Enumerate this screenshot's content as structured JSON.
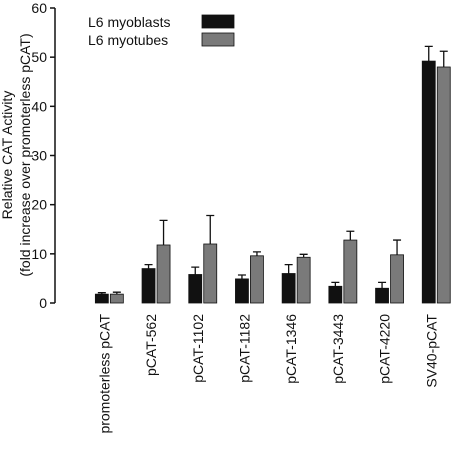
{
  "chart_data": {
    "type": "bar",
    "ylabel": [
      "Relative CAT Activity",
      "(fold increase over promoterless pCAT)"
    ],
    "categories": [
      "promoterless pCAT",
      "pCAT-562",
      "pCAT-1102",
      "pCAT-1182",
      "pCAT-1346",
      "pCAT-3443",
      "pCAT-4220",
      "SV40-pCAT"
    ],
    "series": [
      {
        "name": "L6 myoblasts",
        "color": "#111111",
        "values": [
          1.8,
          7.0,
          5.8,
          4.9,
          6.0,
          3.4,
          3.0,
          49.2
        ],
        "errors": [
          0.3,
          0.8,
          1.5,
          0.8,
          1.8,
          0.8,
          1.2,
          3.0
        ]
      },
      {
        "name": "L6 myotubes",
        "color": "#7a7a7a",
        "values": [
          1.8,
          11.8,
          12.0,
          9.6,
          9.3,
          12.8,
          9.8,
          48.0
        ],
        "errors": [
          0.4,
          5.0,
          5.8,
          0.8,
          0.6,
          1.8,
          3.0,
          3.2
        ]
      }
    ],
    "ylim": [
      0,
      60
    ],
    "yticks": [
      0,
      10,
      20,
      30,
      40,
      50,
      60
    ],
    "legend": "upper left"
  }
}
